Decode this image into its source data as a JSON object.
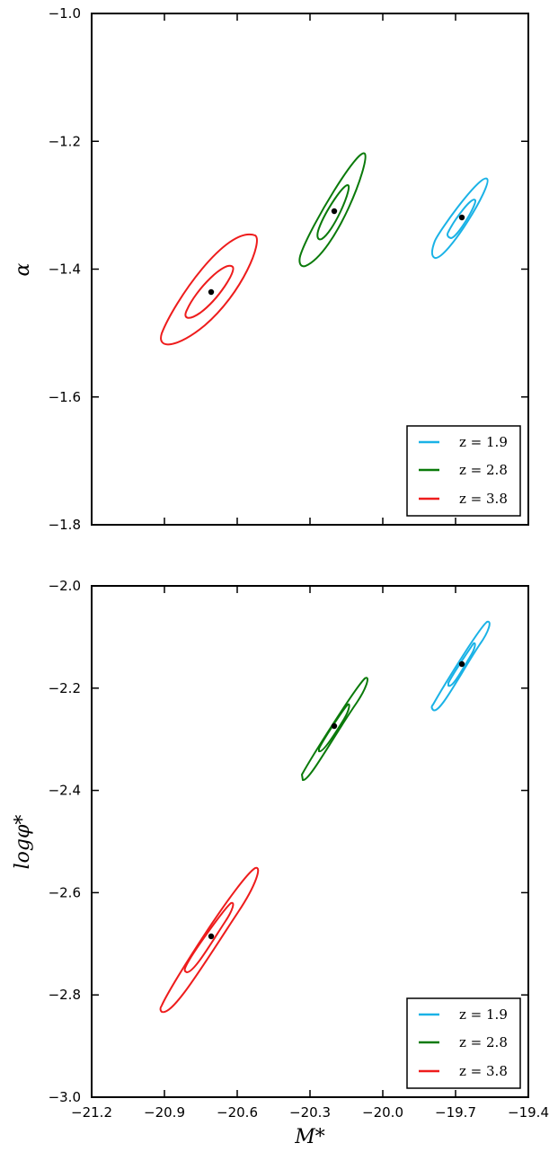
{
  "chart_data": [
    {
      "type": "contour",
      "ylabel": "α",
      "xlim": [
        -21.2,
        -19.4
      ],
      "ylim": [
        -1.8,
        -1.0
      ],
      "xticks": [],
      "yticks": [
        "−1.8",
        "−1.6",
        "−1.4",
        "−1.2",
        "−1.0"
      ],
      "ytick_values": [
        -1.8,
        -1.6,
        -1.4,
        -1.2,
        -1.0
      ],
      "legend": {
        "placement": "bottom-right"
      },
      "series": [
        {
          "name": "z = 1.9",
          "color": "#1ab2e6",
          "center": [
            -19.69,
            -1.318
          ]
        },
        {
          "name": "z = 2.8",
          "color": "#0a7a0a",
          "center": [
            -20.21,
            -1.309
          ]
        },
        {
          "name": "z = 3.8",
          "color": "#ee1c1c",
          "center": [
            -20.72,
            -1.436
          ]
        }
      ]
    },
    {
      "type": "contour",
      "ylabel": "logφ*",
      "xlabel": "M*",
      "xlim": [
        -21.2,
        -19.4
      ],
      "ylim": [
        -3.0,
        -2.0
      ],
      "xticks": [
        "−21.2",
        "−20.9",
        "−20.6",
        "−20.3",
        "−20.0",
        "−19.7",
        "−19.4"
      ],
      "xtick_values": [
        -21.2,
        -20.9,
        -20.6,
        -20.3,
        -20.0,
        -19.7,
        -19.4
      ],
      "yticks": [
        "−3.0",
        "−2.8",
        "−2.6",
        "−2.4",
        "−2.2",
        "−2.0"
      ],
      "ytick_values": [
        -3.0,
        -2.8,
        -2.6,
        -2.4,
        -2.2,
        -2.0
      ],
      "legend": {
        "placement": "bottom-right"
      },
      "series": [
        {
          "name": "z = 1.9",
          "color": "#1ab2e6",
          "center": [
            -19.69,
            -2.152
          ]
        },
        {
          "name": "z = 2.8",
          "color": "#0a7a0a",
          "center": [
            -20.21,
            -2.273
          ]
        },
        {
          "name": "z = 3.8",
          "color": "#ee1c1c",
          "center": [
            -20.72,
            -2.685
          ]
        }
      ]
    }
  ]
}
